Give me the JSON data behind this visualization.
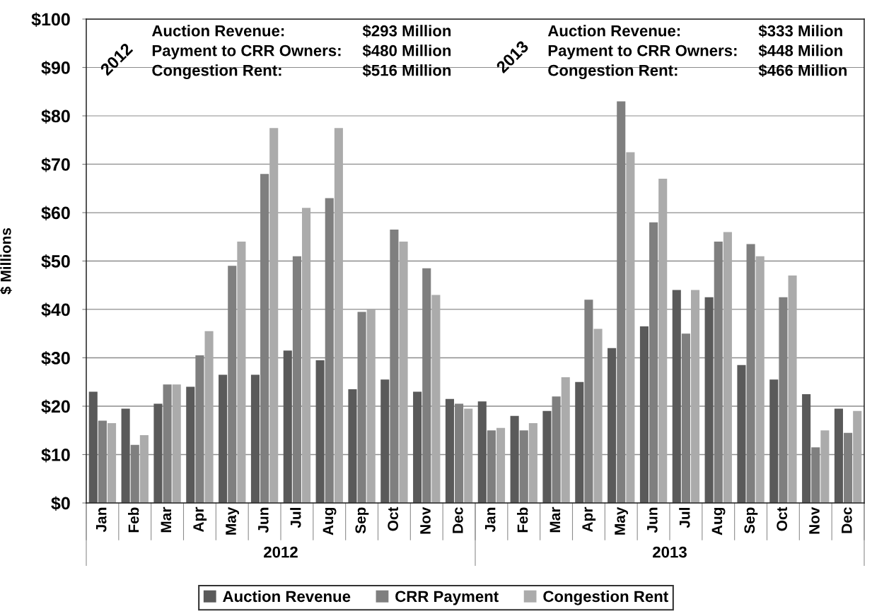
{
  "chart_data": {
    "type": "bar",
    "ylabel": "$ Millions",
    "categories": [
      "Jan",
      "Feb",
      "Mar",
      "Apr",
      "May",
      "Jun",
      "Jul",
      "Aug",
      "Sep",
      "Oct",
      "Nov",
      "Dec",
      "Jan",
      "Feb",
      "Mar",
      "Apr",
      "May",
      "Jun",
      "Jul",
      "Aug",
      "Sep",
      "Oct",
      "Nov",
      "Dec"
    ],
    "series": [
      {
        "name": "Auction Revenue",
        "color": "#5a5a5a",
        "values": [
          23,
          19.5,
          20.5,
          24,
          26.5,
          26.5,
          31.5,
          29.5,
          23.5,
          25.5,
          23,
          21.5,
          21,
          18,
          19,
          25,
          32,
          36.5,
          44,
          42.5,
          28.5,
          25.5,
          22.5,
          19.5
        ]
      },
      {
        "name": "CRR Payment",
        "color": "#7f7f7f",
        "values": [
          17,
          12,
          24.5,
          30.5,
          49,
          68,
          51,
          63,
          39.5,
          56.5,
          48.5,
          20.5,
          15,
          15,
          22,
          42,
          83,
          58,
          35,
          54,
          53.5,
          42.5,
          11.5,
          14.5
        ]
      },
      {
        "name": "Congestion Rent",
        "color": "#ababab",
        "values": [
          16.5,
          14,
          24.5,
          35.5,
          54,
          77.5,
          61,
          77.5,
          40,
          54,
          43,
          19.5,
          15.5,
          16.5,
          26,
          36,
          72.5,
          67,
          44,
          56,
          51,
          47,
          15,
          19
        ]
      }
    ],
    "ylim": [
      0,
      100
    ],
    "yticks": [
      {
        "value": 0,
        "label": "$0"
      },
      {
        "value": 10,
        "label": "$10"
      },
      {
        "value": 20,
        "label": "$20"
      },
      {
        "value": 30,
        "label": "$30"
      },
      {
        "value": 40,
        "label": "$40"
      },
      {
        "value": 50,
        "label": "$50"
      },
      {
        "value": 60,
        "label": "$60"
      },
      {
        "value": 70,
        "label": "$70"
      },
      {
        "value": 80,
        "label": "$80"
      },
      {
        "value": 90,
        "label": "$90"
      },
      {
        "value": 100,
        "label": "$100"
      }
    ],
    "grid": "y",
    "legend": "bottom",
    "annotations": [
      "2012",
      "Auction Revenue:\nPayment to CRR Owners:\nCongestion Rent:",
      "$293 Million\n$480 Million\n$516 Million",
      "2013",
      "Auction Revenue:\nPayment to CRR Owners:\nCongestion Rent:",
      "$333 Milion\n$448 Milion\n$466 Million",
      "2012",
      "2013"
    ]
  }
}
